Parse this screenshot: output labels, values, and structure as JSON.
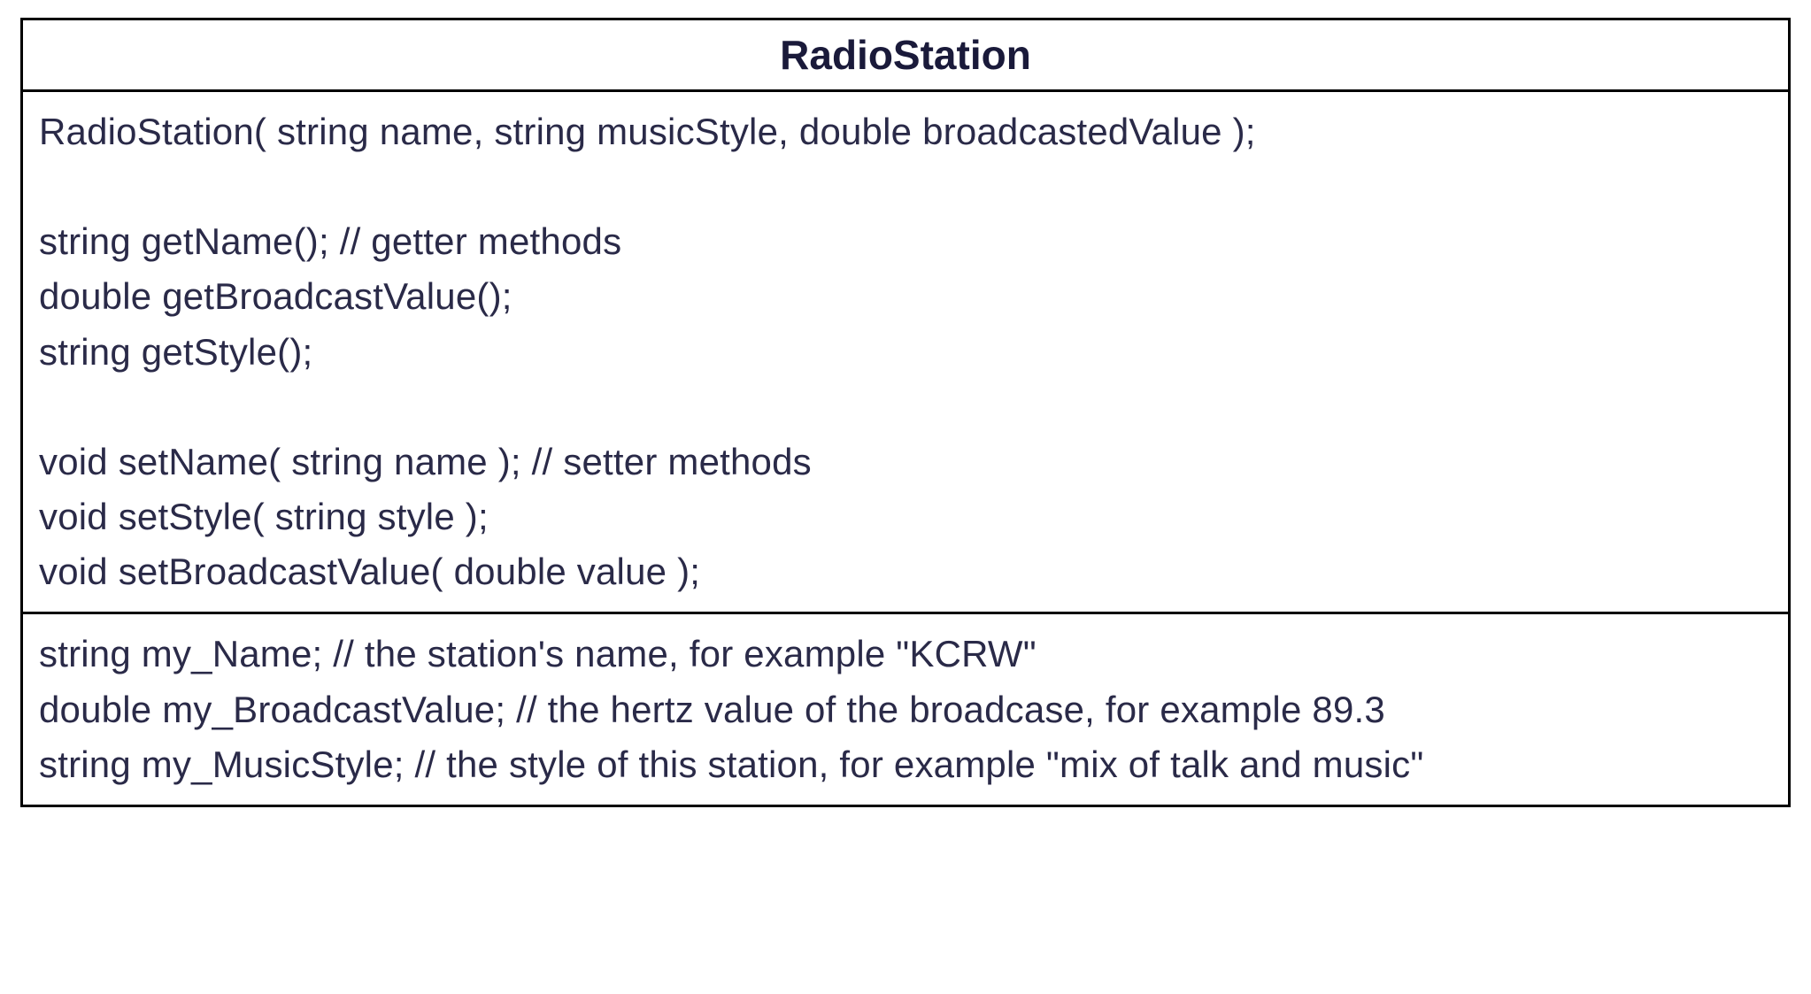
{
  "class_diagram": {
    "type": "uml-class-box",
    "border_color": "#000000",
    "background_color": "#ffffff",
    "text_color": "#2a2a48",
    "title_color": "#1a1a3a",
    "font_family": "Helvetica, Arial, sans-serif",
    "title_fontsize": 46,
    "body_fontsize": 42,
    "line_height": 1.48,
    "title": "RadioStation",
    "sections": [
      {
        "name": "methods",
        "lines": [
          "RadioStation( string name, string musicStyle, double broadcastedValue );",
          "",
          "string getName(); // getter methods",
          "double getBroadcastValue();",
          "string getStyle();",
          "",
          "void setName( string name ); // setter methods",
          "void setStyle( string style );",
          "void setBroadcastValue( double value );"
        ]
      },
      {
        "name": "fields",
        "lines": [
          "string my_Name; // the station's name, for example \"KCRW\"",
          "double my_BroadcastValue; // the hertz value of the broadcase, for example 89.3",
          "string my_MusicStyle; // the style of this station, for example \"mix of talk and music\""
        ]
      }
    ]
  }
}
